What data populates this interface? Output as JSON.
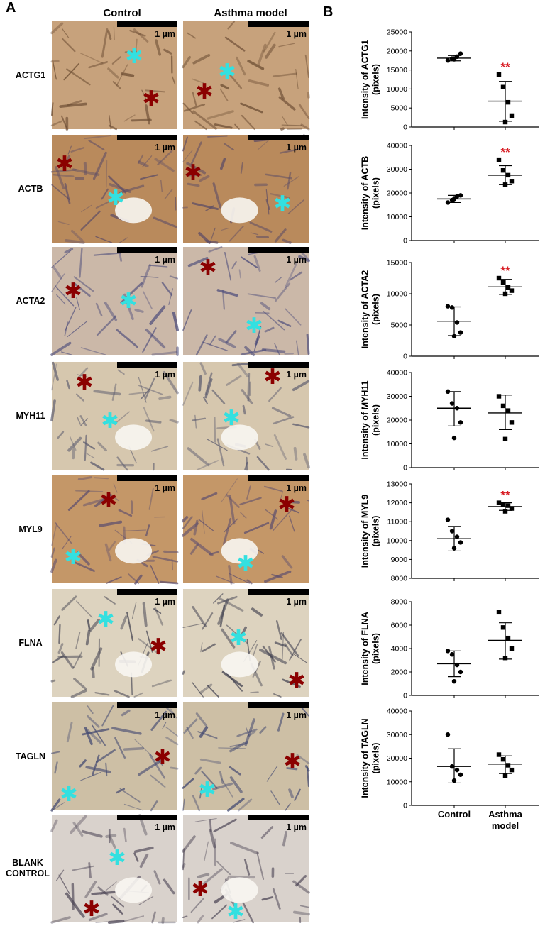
{
  "panel_a": {
    "letter": "A",
    "column_headers": [
      "Control",
      "Asthma model"
    ],
    "scale_bar_label": "1 µm",
    "rows": [
      {
        "label": "ACTG1",
        "tone": "#c7a27c",
        "ink": "#6a4b32"
      },
      {
        "label": "ACTB",
        "tone": "#b98a5c",
        "ink": "#5b4b66"
      },
      {
        "label": "ACTA2",
        "tone": "#cbb8a8",
        "ink": "#4a4a7a"
      },
      {
        "label": "MYH11",
        "tone": "#d6c7ae",
        "ink": "#5a5a6e"
      },
      {
        "label": "MYL9",
        "tone": "#c49768",
        "ink": "#5d4e6e"
      },
      {
        "label": "FLNA",
        "tone": "#ddd3bf",
        "ink": "#3e3e4e"
      },
      {
        "label": "TAGLN",
        "tone": "#cdbfa5",
        "ink": "#3f4670"
      },
      {
        "label": "BLANK\nCONTROL",
        "tone": "#d9d2cc",
        "ink": "#4c4555"
      }
    ],
    "marker_colors": {
      "star_red": "#8b0000",
      "star_cyan": "#33e0e0"
    }
  },
  "panel_b": {
    "letter": "B",
    "significance_mark": "**",
    "significance_color": "#d81f26",
    "x_categories": [
      "Control",
      "Asthma\nmodel"
    ]
  },
  "chart_data": [
    {
      "type": "scatter",
      "ylabel": "Intensity of ACTG1\n(pixels)",
      "ylim": [
        0,
        25000
      ],
      "yticks": [
        0,
        5000,
        10000,
        15000,
        20000,
        25000
      ],
      "categories": [
        "Control",
        "Asthma model"
      ],
      "series": [
        {
          "name": "Control",
          "marker": "circle",
          "values": [
            17500,
            18000,
            18500,
            19300,
            17800
          ],
          "mean": 18100,
          "sd_low": 17400,
          "sd_high": 18800
        },
        {
          "name": "Asthma model",
          "marker": "square",
          "values": [
            13800,
            10500,
            6500,
            3000,
            1300
          ],
          "mean": 6800,
          "sd_low": 1500,
          "sd_high": 12000
        }
      ],
      "significance": [
        false,
        true
      ]
    },
    {
      "type": "scatter",
      "ylabel": "Intensity of ACTB\n(pixels)",
      "ylim": [
        0,
        40000
      ],
      "yticks": [
        0,
        10000,
        20000,
        30000,
        40000
      ],
      "categories": [
        "Control",
        "Asthma model"
      ],
      "series": [
        {
          "name": "Control",
          "marker": "circle",
          "values": [
            16000,
            17000,
            18500,
            19000,
            17500
          ],
          "mean": 17500,
          "sd_low": 16000,
          "sd_high": 19000
        },
        {
          "name": "Asthma model",
          "marker": "square",
          "values": [
            34000,
            29500,
            27500,
            25000,
            23500
          ],
          "mean": 27500,
          "sd_low": 23500,
          "sd_high": 31500
        }
      ],
      "significance": [
        false,
        true
      ]
    },
    {
      "type": "scatter",
      "ylabel": "Intensity of ACTA2\n(pixels)",
      "ylim": [
        0,
        15000
      ],
      "yticks": [
        0,
        5000,
        10000,
        15000
      ],
      "categories": [
        "Control",
        "Asthma model"
      ],
      "series": [
        {
          "name": "Control",
          "marker": "circle",
          "values": [
            8000,
            7800,
            5400,
            3800,
            3200
          ],
          "mean": 5600,
          "sd_low": 3300,
          "sd_high": 7900
        },
        {
          "name": "Asthma model",
          "marker": "square",
          "values": [
            12500,
            11800,
            11000,
            10500,
            10000
          ],
          "mean": 11100,
          "sd_low": 9900,
          "sd_high": 12300
        }
      ],
      "significance": [
        false,
        true
      ]
    },
    {
      "type": "scatter",
      "ylabel": "Intensity of MYH11\n(pixels)",
      "ylim": [
        0,
        40000
      ],
      "yticks": [
        0,
        10000,
        20000,
        30000,
        40000
      ],
      "categories": [
        "Control",
        "Asthma model"
      ],
      "series": [
        {
          "name": "Control",
          "marker": "circle",
          "values": [
            32000,
            27000,
            25000,
            19000,
            12500
          ],
          "mean": 25000,
          "sd_low": 17500,
          "sd_high": 32000
        },
        {
          "name": "Asthma model",
          "marker": "square",
          "values": [
            30000,
            26000,
            24000,
            19000,
            12000
          ],
          "mean": 23000,
          "sd_low": 16000,
          "sd_high": 30500
        }
      ],
      "significance": [
        false,
        false
      ]
    },
    {
      "type": "scatter",
      "ylabel": "Intensity of MYL9\n(pixels)",
      "ylim": [
        8000,
        13000
      ],
      "yticks": [
        8000,
        9000,
        10000,
        11000,
        12000,
        13000
      ],
      "categories": [
        "Control",
        "Asthma model"
      ],
      "series": [
        {
          "name": "Control",
          "marker": "circle",
          "values": [
            11100,
            10500,
            10200,
            9900,
            9600
          ],
          "mean": 10100,
          "sd_low": 9450,
          "sd_high": 10750
        },
        {
          "name": "Asthma model",
          "marker": "square",
          "values": [
            12000,
            11900,
            11850,
            11700,
            11550
          ],
          "mean": 11800,
          "sd_low": 11600,
          "sd_high": 12000
        }
      ],
      "significance": [
        false,
        true
      ]
    },
    {
      "type": "scatter",
      "ylabel": "Intensity of FLNA\n(pixels)",
      "ylim": [
        0,
        8000
      ],
      "yticks": [
        0,
        2000,
        4000,
        6000,
        8000
      ],
      "categories": [
        "Control",
        "Asthma model"
      ],
      "series": [
        {
          "name": "Control",
          "marker": "circle",
          "values": [
            3800,
            3500,
            2600,
            2000,
            1200
          ],
          "mean": 2700,
          "sd_low": 1600,
          "sd_high": 3800
        },
        {
          "name": "Asthma model",
          "marker": "square",
          "values": [
            7100,
            5800,
            4900,
            4000,
            3200
          ],
          "mean": 4700,
          "sd_low": 3100,
          "sd_high": 6200
        }
      ],
      "significance": [
        false,
        false
      ]
    },
    {
      "type": "scatter",
      "ylabel": "Intensity of TAGLN\n(pixels)",
      "ylim": [
        0,
        40000
      ],
      "yticks": [
        0,
        10000,
        20000,
        30000,
        40000
      ],
      "categories": [
        "Control",
        "Asthma model"
      ],
      "series": [
        {
          "name": "Control",
          "marker": "circle",
          "values": [
            30000,
            16500,
            15000,
            13000,
            10500
          ],
          "mean": 16500,
          "sd_low": 9500,
          "sd_high": 24000
        },
        {
          "name": "Asthma model",
          "marker": "square",
          "values": [
            21500,
            19500,
            17000,
            15000,
            12500
          ],
          "mean": 17500,
          "sd_low": 13500,
          "sd_high": 21000
        }
      ],
      "significance": [
        false,
        false
      ]
    }
  ]
}
